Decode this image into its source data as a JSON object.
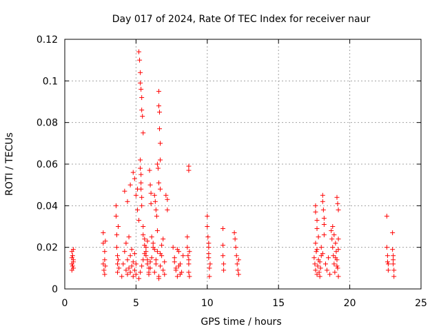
{
  "chart_data": {
    "type": "scatter",
    "title": "Day 017 of 2024, Rate Of TEC Index for receiver naur",
    "xlabel": "GPS time / hours",
    "ylabel": "ROTI / TECUs",
    "xlim": [
      0,
      25
    ],
    "ylim": [
      0,
      0.12
    ],
    "xticks": [
      0,
      5,
      10,
      15,
      20,
      25
    ],
    "xtick_labels": [
      "0",
      "5",
      "10",
      "15",
      "20",
      "25"
    ],
    "yticks": [
      0,
      0.02,
      0.04,
      0.06,
      0.08,
      0.1,
      0.12
    ],
    "ytick_labels": [
      "0",
      "0.02",
      "0.04",
      "0.06",
      "0.08",
      "0.1",
      "0.12"
    ],
    "grid": true,
    "marker": "+",
    "color": "#ff0000",
    "series": [
      {
        "x": [
          0.5,
          0.5,
          0.5,
          0.5,
          0.55,
          0.55,
          0.6,
          0.6,
          0.6,
          0.6,
          2.7,
          2.7,
          2.7,
          2.75,
          2.8,
          2.8,
          2.8,
          2.85,
          2.85,
          3.6,
          3.6,
          3.65,
          3.65,
          3.7,
          3.7,
          3.7,
          3.75,
          3.75,
          3.8,
          4.0,
          4.1,
          4.2,
          4.3,
          4.3,
          4.4,
          4.4,
          4.5,
          4.5,
          4.6,
          4.6,
          4.7,
          4.7,
          4.8,
          4.8,
          4.9,
          4.9,
          5.0,
          5.0,
          4.2,
          4.4,
          4.6,
          4.8,
          4.9,
          5.0,
          5.1,
          5.1,
          5.2,
          5.2,
          5.25,
          5.3,
          5.3,
          5.35,
          5.4,
          5.4,
          5.45,
          5.5,
          5.3,
          5.3,
          5.35,
          5.35,
          5.35,
          5.4,
          5.4,
          5.5,
          5.5,
          5.6,
          5.6,
          5.7,
          5.7,
          5.8,
          5.8,
          5.9,
          5.9,
          5.2,
          5.3,
          5.4,
          5.5,
          5.6,
          5.7,
          5.8,
          5.9,
          6.0,
          6.0,
          6.1,
          6.2,
          6.3,
          6.4,
          6.5,
          6.6,
          6.7,
          6.8,
          6.9,
          7.0,
          6.1,
          6.2,
          6.3,
          6.4,
          6.5,
          6.6,
          6.7,
          6.8,
          6.9,
          7.0,
          6.3,
          6.35,
          6.4,
          6.45,
          6.5,
          6.55,
          6.6,
          6.7,
          6.6,
          6.6,
          6.65,
          6.65,
          6.7,
          6.7,
          5.95,
          6.0,
          6.05,
          6.05,
          7.1,
          7.2,
          7.2,
          7.6,
          7.7,
          7.8,
          7.9,
          8.0,
          8.1,
          8.2,
          8.3,
          7.7,
          7.8,
          7.9,
          8.0,
          8.1,
          8.6,
          8.6,
          8.65,
          8.7,
          8.7,
          8.75,
          8.75,
          8.7,
          8.7,
          8.7,
          10.0,
          10.0,
          10.05,
          10.1,
          10.1,
          10.15,
          10.15,
          10.2,
          10.1,
          10.1,
          11.1,
          11.1,
          11.1,
          11.15,
          11.15,
          11.9,
          11.95,
          12.0,
          12.05,
          12.1,
          12.15,
          12.2,
          12.2,
          17.5,
          17.55,
          17.6,
          17.65,
          17.7,
          17.75,
          17.8,
          17.85,
          17.9,
          17.95,
          18.0,
          17.6,
          17.7,
          17.8,
          17.9,
          18.0,
          18.1,
          17.6,
          17.6,
          17.7,
          17.7,
          18.1,
          18.1,
          18.15,
          18.2,
          18.2,
          18.2,
          18.7,
          18.75,
          18.8,
          18.85,
          18.9,
          18.95,
          19.0,
          19.05,
          19.1,
          19.15,
          19.2,
          18.8,
          18.9,
          19.0,
          19.1,
          19.2,
          19.1,
          19.15,
          19.2,
          19.2,
          18.3,
          18.4,
          18.5,
          18.6,
          22.6,
          22.6,
          22.65,
          22.7,
          22.7,
          22.65,
          23.0,
          23.0,
          23.05,
          23.05,
          23.1,
          23.1,
          23.05
        ],
        "y": [
          0.018,
          0.015,
          0.012,
          0.009,
          0.016,
          0.011,
          0.019,
          0.014,
          0.01,
          0.013,
          0.027,
          0.022,
          0.012,
          0.009,
          0.018,
          0.014,
          0.007,
          0.023,
          0.011,
          0.04,
          0.035,
          0.026,
          0.02,
          0.016,
          0.012,
          0.008,
          0.03,
          0.014,
          0.01,
          0.006,
          0.012,
          0.018,
          0.009,
          0.022,
          0.007,
          0.014,
          0.01,
          0.025,
          0.008,
          0.016,
          0.011,
          0.019,
          0.006,
          0.013,
          0.009,
          0.017,
          0.007,
          0.012,
          0.047,
          0.042,
          0.05,
          0.056,
          0.053,
          0.045,
          0.038,
          0.048,
          0.033,
          0.114,
          0.11,
          0.104,
          0.099,
          0.096,
          0.092,
          0.086,
          0.083,
          0.075,
          0.062,
          0.058,
          0.055,
          0.051,
          0.048,
          0.044,
          0.04,
          0.03,
          0.026,
          0.024,
          0.021,
          0.018,
          0.016,
          0.014,
          0.012,
          0.01,
          0.008,
          0.005,
          0.008,
          0.011,
          0.014,
          0.017,
          0.02,
          0.023,
          0.007,
          0.013,
          0.01,
          0.015,
          0.02,
          0.008,
          0.012,
          0.018,
          0.006,
          0.011,
          0.016,
          0.009,
          0.013,
          0.025,
          0.022,
          0.019,
          0.014,
          0.028,
          0.005,
          0.017,
          0.021,
          0.024,
          0.007,
          0.045,
          0.042,
          0.038,
          0.035,
          0.06,
          0.058,
          0.051,
          0.048,
          0.095,
          0.088,
          0.085,
          0.077,
          0.07,
          0.062,
          0.057,
          0.05,
          0.046,
          0.041,
          0.045,
          0.043,
          0.038,
          0.02,
          0.015,
          0.01,
          0.006,
          0.018,
          0.012,
          0.008,
          0.016,
          0.013,
          0.009,
          0.019,
          0.011,
          0.007,
          0.025,
          0.02,
          0.016,
          0.012,
          0.008,
          0.018,
          0.006,
          0.014,
          0.059,
          0.057,
          0.035,
          0.03,
          0.025,
          0.02,
          0.015,
          0.01,
          0.006,
          0.012,
          0.022,
          0.017,
          0.029,
          0.021,
          0.016,
          0.012,
          0.009,
          0.027,
          0.024,
          0.02,
          0.016,
          0.012,
          0.009,
          0.007,
          0.014,
          0.015,
          0.012,
          0.009,
          0.018,
          0.007,
          0.011,
          0.014,
          0.008,
          0.013,
          0.01,
          0.016,
          0.022,
          0.019,
          0.025,
          0.006,
          0.02,
          0.017,
          0.04,
          0.037,
          0.033,
          0.029,
          0.045,
          0.042,
          0.038,
          0.034,
          0.031,
          0.026,
          0.028,
          0.024,
          0.02,
          0.016,
          0.012,
          0.008,
          0.022,
          0.018,
          0.014,
          0.01,
          0.006,
          0.03,
          0.026,
          0.015,
          0.011,
          0.019,
          0.044,
          0.041,
          0.038,
          0.024,
          0.012,
          0.009,
          0.015,
          0.007,
          0.035,
          0.02,
          0.016,
          0.012,
          0.009,
          0.013,
          0.027,
          0.019,
          0.016,
          0.012,
          0.009,
          0.006,
          0.014
        ]
      }
    ]
  }
}
